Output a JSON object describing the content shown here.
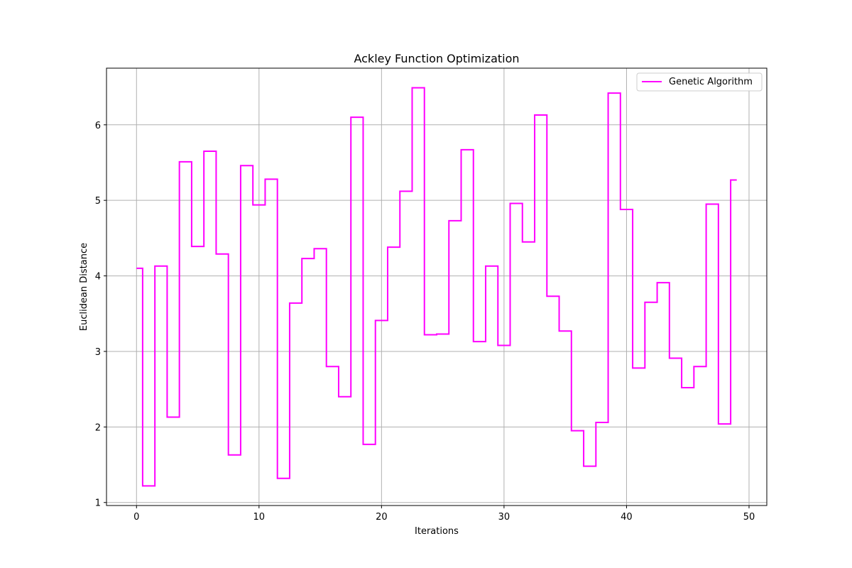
{
  "chart_data": {
    "type": "line",
    "step": "mid",
    "title": "Ackley Function Optimization",
    "xlabel": "Iterations",
    "ylabel": "Euclidean Distance",
    "xlim": [
      -2.45,
      51.45
    ],
    "ylim": [
      0.96,
      6.75
    ],
    "xticks": [
      0,
      10,
      20,
      30,
      40,
      50
    ],
    "yticks": [
      1,
      2,
      3,
      4,
      5,
      6
    ],
    "grid": true,
    "legend": "top-right",
    "series": [
      {
        "name": "Genetic Algorithm",
        "color": "#ff00ff",
        "x": [
          0,
          1,
          2,
          3,
          4,
          5,
          6,
          7,
          8,
          9,
          10,
          11,
          12,
          13,
          14,
          15,
          16,
          17,
          18,
          19,
          20,
          21,
          22,
          23,
          24,
          25,
          26,
          27,
          28,
          29,
          30,
          31,
          32,
          33,
          34,
          35,
          36,
          37,
          38,
          39,
          40,
          41,
          42,
          43,
          44,
          45,
          46,
          47,
          48,
          49
        ],
        "values": [
          4.1,
          1.22,
          4.13,
          2.13,
          5.51,
          4.39,
          5.65,
          4.29,
          1.63,
          5.46,
          4.94,
          5.28,
          1.32,
          3.64,
          4.23,
          4.36,
          2.8,
          2.4,
          6.1,
          1.77,
          3.41,
          4.38,
          5.12,
          6.49,
          3.22,
          3.23,
          4.73,
          5.67,
          3.13,
          4.13,
          3.08,
          4.96,
          4.45,
          6.13,
          3.73,
          3.27,
          1.95,
          1.48,
          2.06,
          6.42,
          4.88,
          2.78,
          3.65,
          3.91,
          2.91,
          2.52,
          2.8,
          4.95,
          2.04,
          5.27
        ]
      }
    ]
  }
}
